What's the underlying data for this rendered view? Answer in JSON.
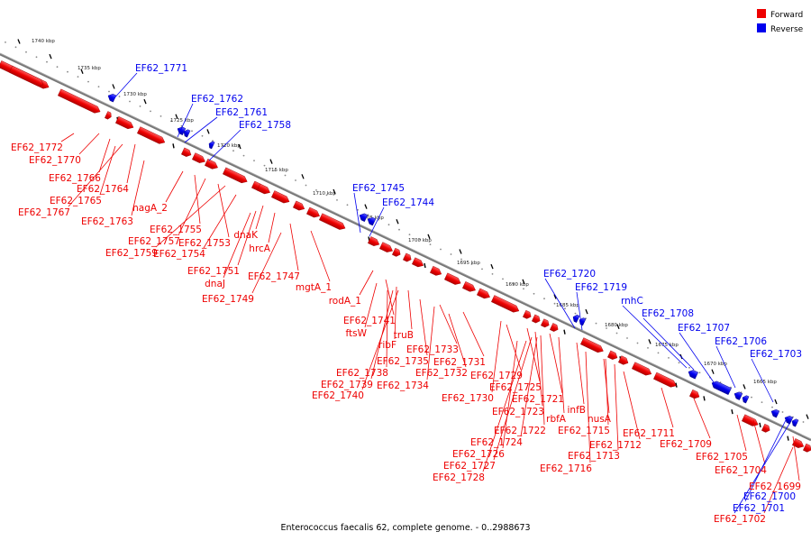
{
  "caption": "Enterococcus faecalis 62, complete genome. - 0..2988673",
  "legend": [
    {
      "label": "Forward",
      "color": "#ee0000"
    },
    {
      "label": "Reverse",
      "color": "#0000ee"
    }
  ],
  "colors": {
    "forward": "#ee0000",
    "reverse": "#0000ee",
    "axis": "#777777"
  },
  "kbp_labels": [
    "1740 kbp",
    "1735 kbp",
    "1730 kbp",
    "1725 kbp",
    "1720 kbp",
    "1715 kbp",
    "1710 kbp",
    "1705 kbp",
    "1700 kbp",
    "1695 kbp",
    "1690 kbp",
    "1685 kbp",
    "1680 kbp",
    "1675 kbp",
    "1670 kbp",
    "1665 kbp"
  ],
  "forward_labels": [
    "EF62_1772",
    "EF62_1770",
    "EF62_1766",
    "EF62_1764",
    "EF62_1765",
    "EF62_1767",
    "EF62_1763",
    "nagA_2",
    "EF62_1755",
    "EF62_1757",
    "EF62_1753",
    "EF62_1759",
    "EF62_1754",
    "dnaK",
    "hrcA",
    "EF62_1751",
    "dnaJ",
    "EF62_1747",
    "mgtA_1",
    "EF62_1749",
    "rodA_1",
    "EF62_1741",
    "ftsW",
    "truB",
    "ribF",
    "EF62_1733",
    "EF62_1735",
    "EF62_1731",
    "EF62_1738",
    "EF62_1732",
    "EF62_1739",
    "EF62_1734",
    "EF62_1729",
    "EF62_1740",
    "EF62_1725",
    "EF62_1730",
    "EF62_1721",
    "EF62_1723",
    "infB",
    "rbfA",
    "nusA",
    "EF62_1722",
    "EF62_1715",
    "EF62_1711",
    "EF62_1724",
    "EF62_1712",
    "EF62_1709",
    "EF62_1726",
    "EF62_1713",
    "EF62_1705",
    "EF62_1727",
    "EF62_1716",
    "EF62_1704",
    "EF62_1728",
    "EF62_1699",
    "EF62_1702"
  ],
  "reverse_labels": [
    "EF62_1771",
    "EF62_1762",
    "EF62_1761",
    "EF62_1758",
    "EF62_1745",
    "EF62_1744",
    "EF62_1720",
    "EF62_1719",
    "rnhC",
    "EF62_1708",
    "EF62_1707",
    "EF62_1706",
    "EF62_1703",
    "EF62_1700",
    "EF62_1701"
  ]
}
